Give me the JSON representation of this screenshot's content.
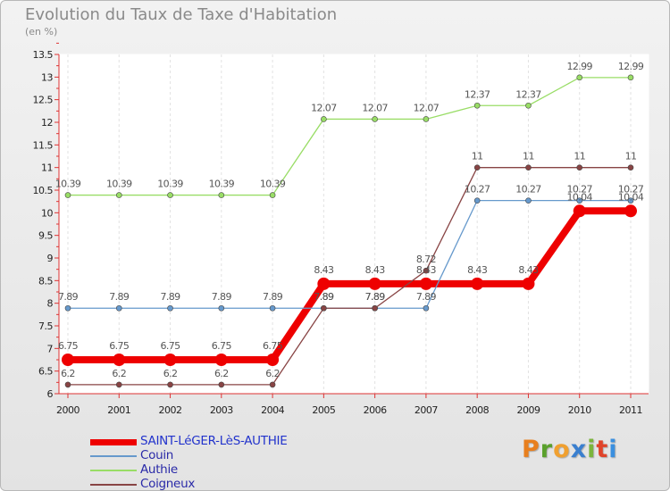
{
  "title": "Evolution du Taux de Taxe d'Habitation",
  "unit_label": "(en %)",
  "logo": {
    "letters": [
      "P",
      "r",
      "o",
      "x",
      "i",
      "t",
      "i"
    ],
    "colors": [
      "#e87f1e",
      "#5aa02c",
      "#f0a030",
      "#3a7fcf",
      "#7bb43c",
      "#e0442a",
      "#3a8fdf"
    ]
  },
  "chart_data": {
    "type": "line",
    "title": "Evolution du Taux de Taxe d'Habitation",
    "ylabel": "(en %)",
    "xlabel": "",
    "x": [
      "2000",
      "2001",
      "2002",
      "2003",
      "2004",
      "2005",
      "2006",
      "2007",
      "2008",
      "2009",
      "2010",
      "2011"
    ],
    "ylim": [
      6,
      13.5
    ],
    "yticks": [
      "6",
      "6.5",
      "7",
      "7.5",
      "8",
      "8.5",
      "9",
      "9.5",
      "10",
      "10.5",
      "11",
      "11.5",
      "12",
      "12.5",
      "13",
      "13.5"
    ],
    "series": [
      {
        "name": "SAINT-LéGER-LèS-AUTHIE",
        "color": "#ee0000",
        "width": 8,
        "marker": 7,
        "values": [
          6.75,
          6.75,
          6.75,
          6.75,
          6.75,
          8.43,
          8.43,
          8.43,
          8.43,
          8.43,
          10.04,
          10.04
        ],
        "labels": [
          "6.75",
          "6.75",
          "6.75",
          "6.75",
          "6.75",
          "8.43",
          "8.43",
          "8.43",
          "8.43",
          "8.43",
          "10.04",
          "10.04"
        ]
      },
      {
        "name": "Couin",
        "color": "#6699cc",
        "width": 1.3,
        "marker": 3,
        "values": [
          7.89,
          7.89,
          7.89,
          7.89,
          7.89,
          7.89,
          7.89,
          7.89,
          10.27,
          10.27,
          10.27,
          10.27
        ],
        "labels": [
          "7.89",
          "7.89",
          "7.89",
          "7.89",
          "7.89",
          "7.89",
          "7.89",
          "7.89",
          "10.27",
          "10.27",
          "10.27",
          "10.27"
        ]
      },
      {
        "name": "Authie",
        "color": "#99dd66",
        "width": 1.3,
        "marker": 3,
        "values": [
          10.39,
          10.39,
          10.39,
          10.39,
          10.39,
          12.07,
          12.07,
          12.07,
          12.37,
          12.37,
          12.99,
          12.99
        ],
        "labels": [
          "10.39",
          "10.39",
          "10.39",
          "10.39",
          "10.39",
          "12.07",
          "12.07",
          "12.07",
          "12.37",
          "12.37",
          "12.99",
          "12.99"
        ]
      },
      {
        "name": "Coigneux",
        "color": "#884444",
        "width": 1.3,
        "marker": 3,
        "values": [
          6.2,
          6.2,
          6.2,
          6.2,
          6.2,
          7.89,
          7.89,
          8.72,
          11,
          11,
          11,
          11
        ],
        "labels": [
          "6.2",
          "6.2",
          "6.2",
          "6.2",
          "6.2",
          "7.89",
          "7.89",
          "8.72",
          "11",
          "11",
          "11",
          "11"
        ]
      }
    ]
  }
}
